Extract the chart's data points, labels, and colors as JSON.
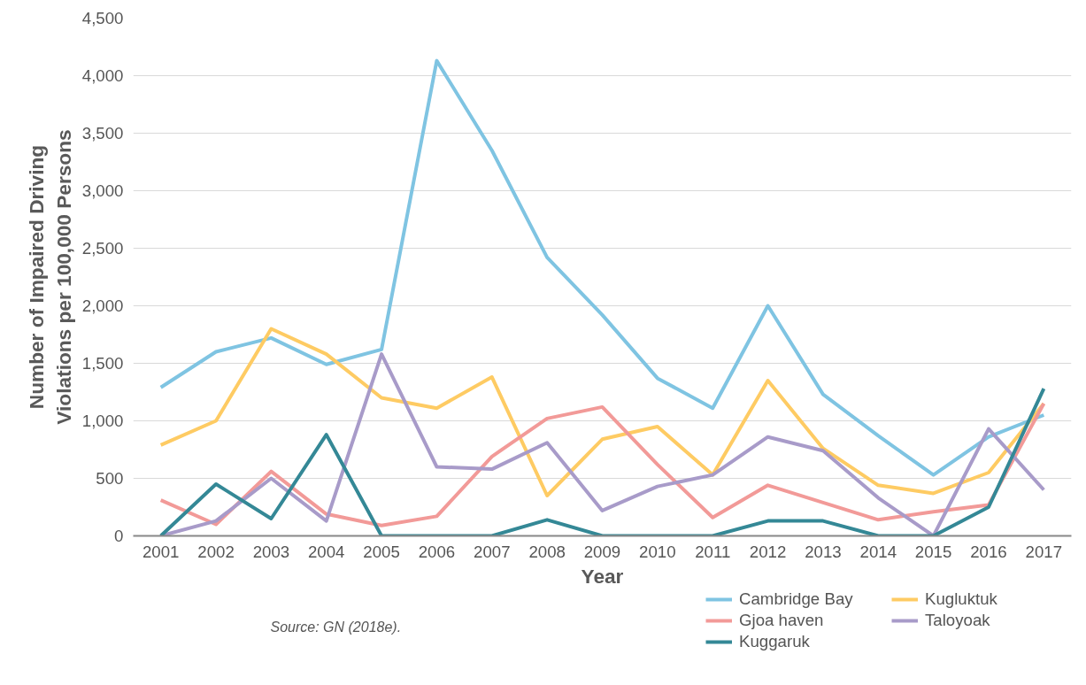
{
  "chart_data": {
    "type": "line",
    "xlabel": "Year",
    "ylabel": "Number of Impaired Driving\nViolations per 100,000 Persons",
    "categories": [
      "2001",
      "2002",
      "2003",
      "2004",
      "2005",
      "2006",
      "2007",
      "2008",
      "2009",
      "2010",
      "2011",
      "2012",
      "2013",
      "2014",
      "2015",
      "2016",
      "2017"
    ],
    "series": [
      {
        "name": "Cambridge Bay",
        "color": "#7fc4e2",
        "values": [
          1290,
          1600,
          1720,
          1490,
          1620,
          4130,
          3350,
          2420,
          1920,
          1370,
          1110,
          2000,
          1230,
          870,
          530,
          860,
          1050
        ]
      },
      {
        "name": "Kugluktuk",
        "color": "#fecb63",
        "values": [
          790,
          1000,
          1800,
          1580,
          1200,
          1110,
          1380,
          350,
          840,
          950,
          530,
          1350,
          760,
          440,
          370,
          550,
          1150
        ]
      },
      {
        "name": "Gjoa haven",
        "color": "#f29a98",
        "values": [
          310,
          100,
          560,
          190,
          90,
          170,
          690,
          1020,
          1120,
          620,
          160,
          440,
          290,
          140,
          210,
          270,
          1150
        ]
      },
      {
        "name": "Taloyoak",
        "color": "#a89bc9",
        "values": [
          0,
          130,
          500,
          130,
          1580,
          600,
          580,
          810,
          220,
          430,
          530,
          860,
          740,
          330,
          0,
          930,
          400
        ]
      },
      {
        "name": "Kuggaruk",
        "color": "#348896",
        "values": [
          0,
          450,
          150,
          880,
          0,
          0,
          0,
          140,
          0,
          0,
          0,
          130,
          130,
          0,
          0,
          250,
          1280
        ]
      }
    ],
    "ylim": [
      0,
      4500
    ],
    "yticks": [
      0,
      {
        "value": 500,
        "label": "500"
      },
      {
        "value": 1000,
        "label": "1,000"
      },
      {
        "value": 1500,
        "label": "1,500"
      },
      {
        "value": 2000,
        "label": "2,000"
      },
      {
        "value": 2500,
        "label": "2,500"
      },
      {
        "value": 3000,
        "label": "3,000"
      },
      {
        "value": 3500,
        "label": "3,500"
      },
      {
        "value": 4000,
        "label": "4,000"
      },
      {
        "value": 4500,
        "label": "4,500"
      }
    ],
    "grid": "y",
    "legend": "bottom right",
    "marker": "none",
    "line_style": "solid",
    "annotations": [
      "Source: GN (2018e)."
    ]
  }
}
